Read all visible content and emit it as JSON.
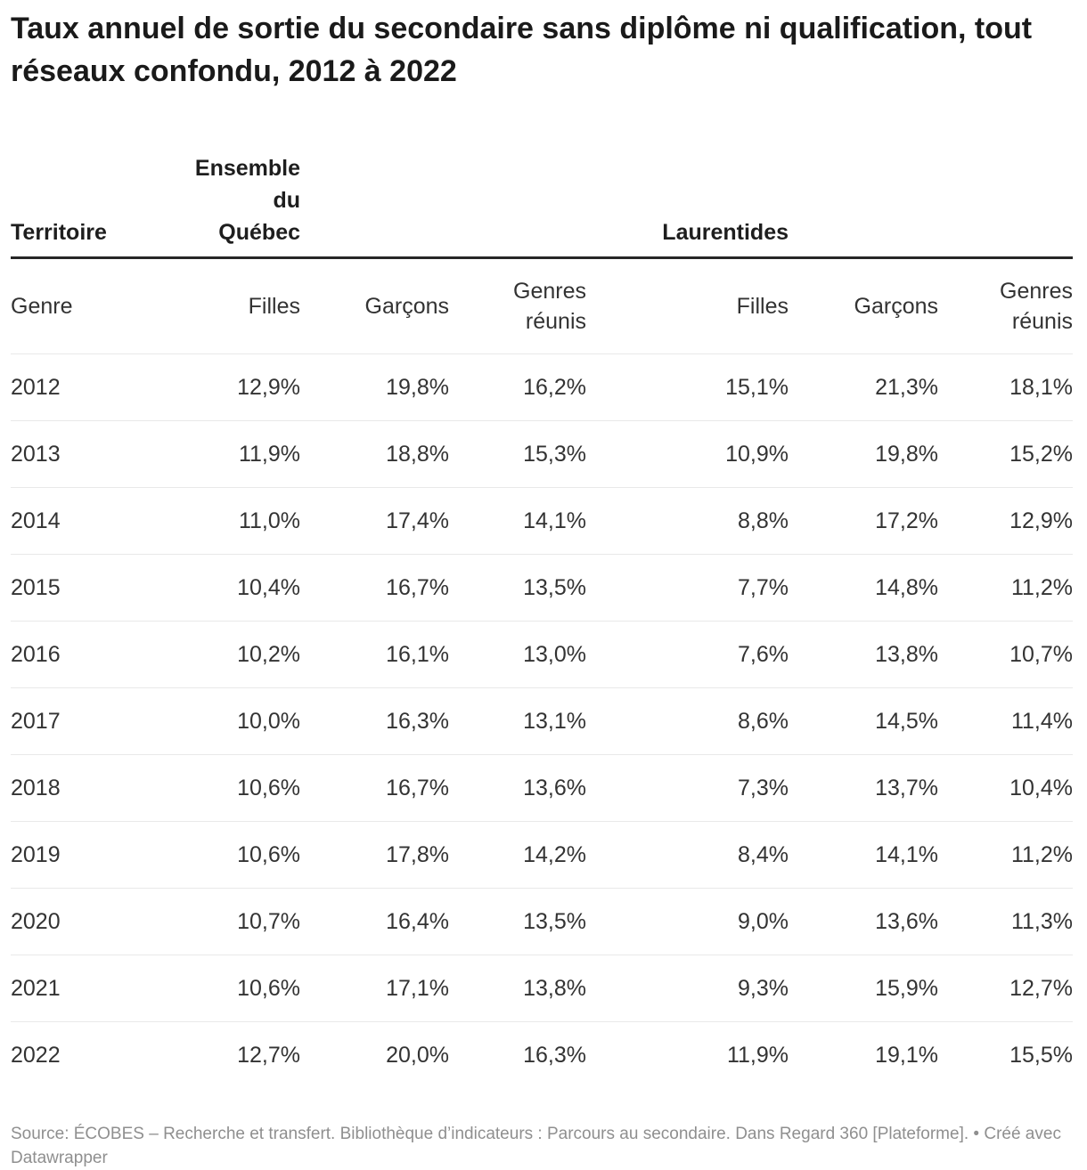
{
  "chart_data": {
    "type": "table",
    "title": "Taux annuel de sortie du secondaire sans diplôme ni qualification, tout réseaux confondu, 2012 à 2022",
    "column_groups": [
      "Ensemble du Québec",
      "Laurentides"
    ],
    "columns": [
      "Genre",
      "Filles",
      "Garçons",
      "Genres réunis",
      "Filles",
      "Garçons",
      "Genres réunis"
    ],
    "rows": [
      [
        "2012",
        "12,9%",
        "19,8%",
        "16,2%",
        "15,1%",
        "21,3%",
        "18,1%"
      ],
      [
        "2013",
        "11,9%",
        "18,8%",
        "15,3%",
        "10,9%",
        "19,8%",
        "15,2%"
      ],
      [
        "2014",
        "11,0%",
        "17,4%",
        "14,1%",
        "8,8%",
        "17,2%",
        "12,9%"
      ],
      [
        "2015",
        "10,4%",
        "16,7%",
        "13,5%",
        "7,7%",
        "14,8%",
        "11,2%"
      ],
      [
        "2016",
        "10,2%",
        "16,1%",
        "13,0%",
        "7,6%",
        "13,8%",
        "10,7%"
      ],
      [
        "2017",
        "10,0%",
        "16,3%",
        "13,1%",
        "8,6%",
        "14,5%",
        "11,4%"
      ],
      [
        "2018",
        "10,6%",
        "16,7%",
        "13,6%",
        "7,3%",
        "13,7%",
        "10,4%"
      ],
      [
        "2019",
        "10,6%",
        "17,8%",
        "14,2%",
        "8,4%",
        "14,1%",
        "11,2%"
      ],
      [
        "2020",
        "10,7%",
        "16,4%",
        "13,5%",
        "9,0%",
        "13,6%",
        "11,3%"
      ],
      [
        "2021",
        "10,6%",
        "17,1%",
        "13,8%",
        "9,3%",
        "15,9%",
        "12,7%"
      ],
      [
        "2022",
        "12,7%",
        "20,0%",
        "16,3%",
        "11,9%",
        "19,1%",
        "15,5%"
      ]
    ]
  },
  "ui": {
    "group_header": {
      "territory_label": "Territoire",
      "group1_lines": [
        "Ensemble",
        "du",
        "Québec"
      ],
      "group2": "Laurentides"
    },
    "column_header": {
      "genre_label": "Genre",
      "columns": [
        "Filles",
        "Garçons",
        "Genres réunis",
        "Filles",
        "Garçons",
        "Genres réunis"
      ]
    },
    "footer": {
      "source": "Source: ÉCOBES – Recherche et transfert. Bibliothèque d’indicateurs : Parcours au secondaire. Dans Regard 360 [Plateforme].",
      "separator": "•",
      "credit": "Créé avec Datawrapper"
    }
  },
  "colors": {
    "title_text": "#1a1a1a",
    "table_text": "#333333",
    "header_rule": "#262626",
    "row_separator": "#e9e9e9",
    "footer_text": "#8f8f8f",
    "background": "#ffffff"
  }
}
